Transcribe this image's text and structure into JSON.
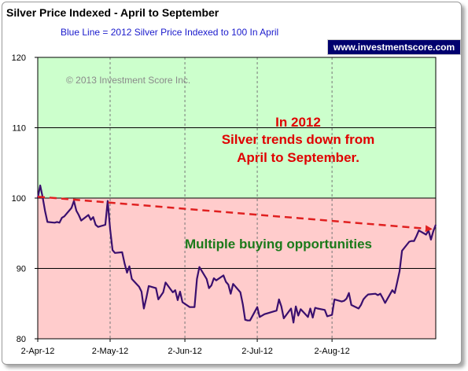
{
  "header": {
    "title": "Silver Price Indexed - April to September",
    "subtitle": "Blue Line =  2012 Silver Price Indexed to 100 In April",
    "badge": "www.investmentscore.com"
  },
  "colors": {
    "series": "#3a0f6e",
    "trend": "#e02020",
    "upper_zone": "#ccffcc",
    "lower_zone": "#ffcccc"
  },
  "annotations": {
    "copyright": "© 2013 Investment Score Inc.",
    "trend_line1": "In 2012",
    "trend_line2": "Silver trends down from",
    "trend_line3": "April to September.",
    "buying": "Multiple buying opportunities"
  },
  "chart_data": {
    "type": "line",
    "title": "Silver Price Indexed - April to September",
    "ylim": [
      80,
      120
    ],
    "y_ticks": [
      80,
      90,
      100,
      110,
      120
    ],
    "x_tick_labels": [
      "2-Apr-12",
      "2-May-12",
      "2-Jun-12",
      "2-Jul-12",
      "2-Aug-12"
    ],
    "x_ticks": [
      "2012-04-02",
      "2012-05-02",
      "2012-06-02",
      "2012-07-02",
      "2012-08-02"
    ],
    "x_range": [
      "2012-04-02",
      "2012-09-14"
    ],
    "grid": true,
    "zones": [
      {
        "from": 100,
        "to": 120,
        "color": "#ccffcc"
      },
      {
        "from": 80,
        "to": 100,
        "color": "#ffcccc"
      }
    ],
    "series": [
      {
        "name": "2012 Silver Price Indexed to 100 In April",
        "color": "#3a0f6e",
        "points": [
          [
            "2012-04-02",
            100.0
          ],
          [
            "2012-04-03",
            101.8
          ],
          [
            "2012-04-04",
            100.2
          ],
          [
            "2012-04-05",
            98.2
          ],
          [
            "2012-04-06",
            96.6
          ],
          [
            "2012-04-09",
            96.5
          ],
          [
            "2012-04-10",
            96.6
          ],
          [
            "2012-04-11",
            96.5
          ],
          [
            "2012-04-12",
            97.2
          ],
          [
            "2012-04-13",
            97.4
          ],
          [
            "2012-04-16",
            98.6
          ],
          [
            "2012-04-17",
            99.6
          ],
          [
            "2012-04-18",
            98.2
          ],
          [
            "2012-04-19",
            97.6
          ],
          [
            "2012-04-20",
            96.8
          ],
          [
            "2012-04-23",
            97.6
          ],
          [
            "2012-04-24",
            96.9
          ],
          [
            "2012-04-25",
            97.3
          ],
          [
            "2012-04-26",
            96.2
          ],
          [
            "2012-04-27",
            95.9
          ],
          [
            "2012-04-30",
            96.2
          ],
          [
            "2012-05-01",
            99.6
          ],
          [
            "2012-05-02",
            95.6
          ],
          [
            "2012-05-03",
            92.6
          ],
          [
            "2012-05-04",
            92.2
          ],
          [
            "2012-05-07",
            92.3
          ],
          [
            "2012-05-08",
            90.7
          ],
          [
            "2012-05-09",
            89.4
          ],
          [
            "2012-05-10",
            90.3
          ],
          [
            "2012-05-11",
            88.5
          ],
          [
            "2012-05-14",
            87.4
          ],
          [
            "2012-05-15",
            86.7
          ],
          [
            "2012-05-16",
            84.3
          ],
          [
            "2012-05-17",
            85.8
          ],
          [
            "2012-05-18",
            87.5
          ],
          [
            "2012-05-21",
            87.2
          ],
          [
            "2012-05-22",
            85.6
          ],
          [
            "2012-05-23",
            86.1
          ],
          [
            "2012-05-24",
            86.6
          ],
          [
            "2012-05-25",
            88.0
          ],
          [
            "2012-05-28",
            86.6
          ],
          [
            "2012-05-29",
            86.9
          ],
          [
            "2012-05-30",
            85.5
          ],
          [
            "2012-05-31",
            86.7
          ],
          [
            "2012-06-01",
            85.2
          ],
          [
            "2012-06-04",
            84.5
          ],
          [
            "2012-06-05",
            84.5
          ],
          [
            "2012-06-06",
            84.5
          ],
          [
            "2012-06-07",
            88.5
          ],
          [
            "2012-06-08",
            90.2
          ],
          [
            "2012-06-11",
            88.5
          ],
          [
            "2012-06-12",
            87.2
          ],
          [
            "2012-06-13",
            87.6
          ],
          [
            "2012-06-14",
            88.6
          ],
          [
            "2012-06-15",
            88.3
          ],
          [
            "2012-06-18",
            89.0
          ],
          [
            "2012-06-19",
            88.1
          ],
          [
            "2012-06-20",
            87.7
          ],
          [
            "2012-06-21",
            86.4
          ],
          [
            "2012-06-22",
            87.8
          ],
          [
            "2012-06-25",
            86.6
          ],
          [
            "2012-06-26",
            84.9
          ],
          [
            "2012-06-27",
            82.7
          ],
          [
            "2012-06-28",
            82.6
          ],
          [
            "2012-06-29",
            82.6
          ],
          [
            "2012-07-02",
            84.5
          ],
          [
            "2012-07-03",
            83.1
          ],
          [
            "2012-07-05",
            83.5
          ],
          [
            "2012-07-06",
            83.6
          ],
          [
            "2012-07-09",
            83.9
          ],
          [
            "2012-07-10",
            84.0
          ],
          [
            "2012-07-11",
            85.6
          ],
          [
            "2012-07-12",
            84.6
          ],
          [
            "2012-07-13",
            82.9
          ],
          [
            "2012-07-16",
            84.3
          ],
          [
            "2012-07-17",
            82.3
          ],
          [
            "2012-07-18",
            84.6
          ],
          [
            "2012-07-19",
            83.3
          ],
          [
            "2012-07-20",
            84.2
          ],
          [
            "2012-07-23",
            83.1
          ],
          [
            "2012-07-24",
            84.3
          ],
          [
            "2012-07-25",
            83.0
          ],
          [
            "2012-07-26",
            84.4
          ],
          [
            "2012-07-27",
            84.3
          ],
          [
            "2012-07-30",
            84.1
          ],
          [
            "2012-07-31",
            83.2
          ],
          [
            "2012-08-01",
            83.3
          ],
          [
            "2012-08-02",
            83.4
          ],
          [
            "2012-08-03",
            85.6
          ],
          [
            "2012-08-06",
            85.3
          ],
          [
            "2012-08-07",
            85.4
          ],
          [
            "2012-08-08",
            85.7
          ],
          [
            "2012-08-09",
            86.5
          ],
          [
            "2012-08-10",
            84.8
          ],
          [
            "2012-08-13",
            84.3
          ],
          [
            "2012-08-14",
            84.8
          ],
          [
            "2012-08-15",
            85.6
          ],
          [
            "2012-08-16",
            86.0
          ],
          [
            "2012-08-17",
            86.3
          ],
          [
            "2012-08-20",
            86.4
          ],
          [
            "2012-08-21",
            86.2
          ],
          [
            "2012-08-22",
            86.4
          ],
          [
            "2012-08-23",
            85.8
          ],
          [
            "2012-08-24",
            85.1
          ],
          [
            "2012-08-27",
            86.9
          ],
          [
            "2012-08-28",
            86.5
          ],
          [
            "2012-08-29",
            88.0
          ],
          [
            "2012-08-30",
            89.6
          ],
          [
            "2012-08-31",
            92.5
          ],
          [
            "2012-09-03",
            93.8
          ],
          [
            "2012-09-04",
            93.9
          ],
          [
            "2012-09-05",
            93.9
          ],
          [
            "2012-09-06",
            94.6
          ],
          [
            "2012-09-07",
            95.4
          ],
          [
            "2012-09-10",
            94.8
          ],
          [
            "2012-09-11",
            95.4
          ],
          [
            "2012-09-12",
            94.1
          ],
          [
            "2012-09-13",
            95.3
          ],
          [
            "2012-09-14",
            96.2
          ]
        ]
      }
    ],
    "trend_line": {
      "style": "dashed-arrow",
      "color": "#e02020",
      "from": [
        "2012-04-02",
        100.2
      ],
      "to": [
        "2012-09-12",
        95.6
      ]
    }
  }
}
